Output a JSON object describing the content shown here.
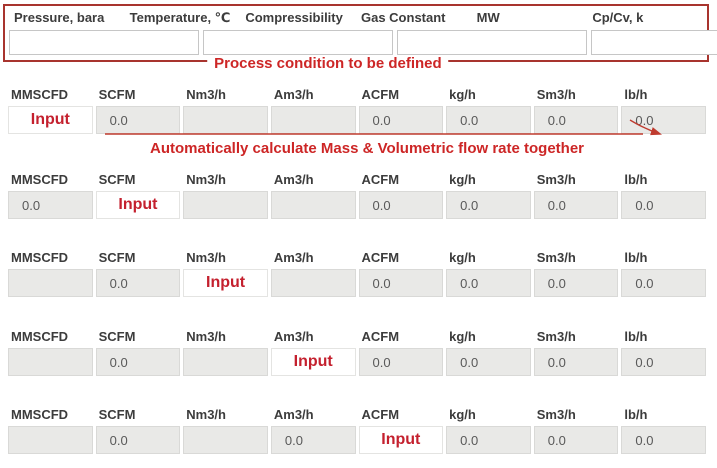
{
  "process_panel": {
    "legend": "Process condition to be defined",
    "fields": [
      {
        "label": "Pressure, bara",
        "value": ""
      },
      {
        "label": "Temperature, ℃",
        "value": ""
      },
      {
        "label": "Compressibility",
        "value": ""
      },
      {
        "label": "Gas Constant",
        "value": ""
      },
      {
        "label": "MW",
        "value": ""
      },
      {
        "label": "Cp/Cv, k",
        "value": ""
      }
    ]
  },
  "annotation": {
    "text": "Automatically calculate Mass & Volumetric flow rate together"
  },
  "flow_headers": [
    "MMSCFD",
    "SCFM",
    "Nm3/h",
    "Am3/h",
    "ACFM",
    "kg/h",
    "Sm3/h",
    "lb/h"
  ],
  "flow_rows": [
    {
      "cells": [
        {
          "type": "input",
          "text": "Input"
        },
        {
          "type": "value",
          "text": "0.0"
        },
        {
          "type": "empty",
          "text": ""
        },
        {
          "type": "empty",
          "text": ""
        },
        {
          "type": "value",
          "text": "0.0"
        },
        {
          "type": "value",
          "text": "0.0"
        },
        {
          "type": "value",
          "text": "0.0"
        },
        {
          "type": "value",
          "text": "0.0"
        }
      ]
    },
    {
      "cells": [
        {
          "type": "value",
          "text": "0.0"
        },
        {
          "type": "input",
          "text": "Input"
        },
        {
          "type": "empty",
          "text": ""
        },
        {
          "type": "empty",
          "text": ""
        },
        {
          "type": "value",
          "text": "0.0"
        },
        {
          "type": "value",
          "text": "0.0"
        },
        {
          "type": "value",
          "text": "0.0"
        },
        {
          "type": "value",
          "text": "0.0"
        }
      ]
    },
    {
      "cells": [
        {
          "type": "empty",
          "text": ""
        },
        {
          "type": "value",
          "text": "0.0"
        },
        {
          "type": "input",
          "text": "Input"
        },
        {
          "type": "empty",
          "text": ""
        },
        {
          "type": "value",
          "text": "0.0"
        },
        {
          "type": "value",
          "text": "0.0"
        },
        {
          "type": "value",
          "text": "0.0"
        },
        {
          "type": "value",
          "text": "0.0"
        }
      ]
    },
    {
      "cells": [
        {
          "type": "empty",
          "text": ""
        },
        {
          "type": "value",
          "text": "0.0"
        },
        {
          "type": "empty",
          "text": ""
        },
        {
          "type": "input",
          "text": "Input"
        },
        {
          "type": "value",
          "text": "0.0"
        },
        {
          "type": "value",
          "text": "0.0"
        },
        {
          "type": "value",
          "text": "0.0"
        },
        {
          "type": "value",
          "text": "0.0"
        }
      ]
    },
    {
      "cells": [
        {
          "type": "empty",
          "text": ""
        },
        {
          "type": "value",
          "text": "0.0"
        },
        {
          "type": "empty",
          "text": ""
        },
        {
          "type": "value",
          "text": "0.0"
        },
        {
          "type": "input",
          "text": "Input"
        },
        {
          "type": "value",
          "text": "0.0"
        },
        {
          "type": "value",
          "text": "0.0"
        },
        {
          "type": "value",
          "text": "0.0"
        }
      ]
    }
  ],
  "colors": {
    "panel_border": "#a8342e",
    "red_text": "#cd2626",
    "input_red": "#c4202e",
    "arrow_red": "#bf3b2f",
    "header_text": "#3c3c3c",
    "cell_bg": "#e9e9e7",
    "cell_border": "#d9d9d7",
    "cell_text": "#595959",
    "box_border": "#c6c6c6"
  }
}
